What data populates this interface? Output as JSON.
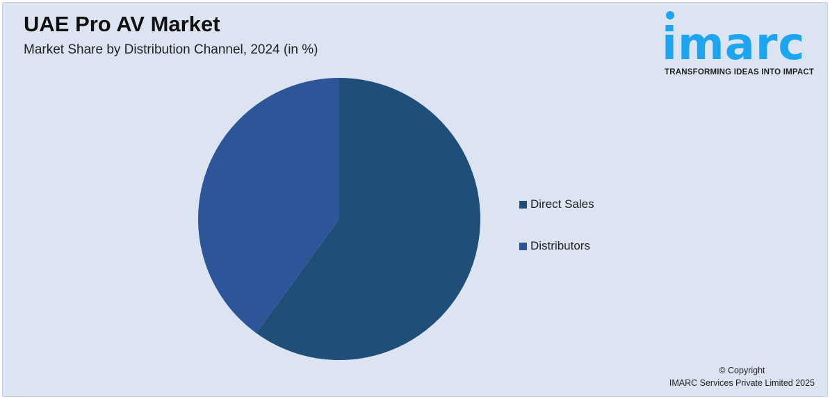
{
  "header": {
    "title": "UAE Pro AV Market",
    "subtitle": "Market Share by Distribution Channel, 2024 (in %)"
  },
  "logo": {
    "word": "imarc",
    "tagline": "TRANSFORMING IDEAS INTO IMPACT",
    "color": "#1ea5f0"
  },
  "chart_data": {
    "type": "pie",
    "title": "UAE Pro AV Market",
    "subtitle": "Market Share by Distribution Channel, 2024 (in %)",
    "categories": [
      "Direct Sales",
      "Distributors"
    ],
    "values": [
      60,
      40
    ],
    "colors": [
      "#1f4e79",
      "#2e5597"
    ],
    "start": "12 o'clock, clockwise",
    "legend_position": "right"
  },
  "footer": {
    "copyright": "© Copyright",
    "company": "IMARC Services Private Limited 2025"
  }
}
